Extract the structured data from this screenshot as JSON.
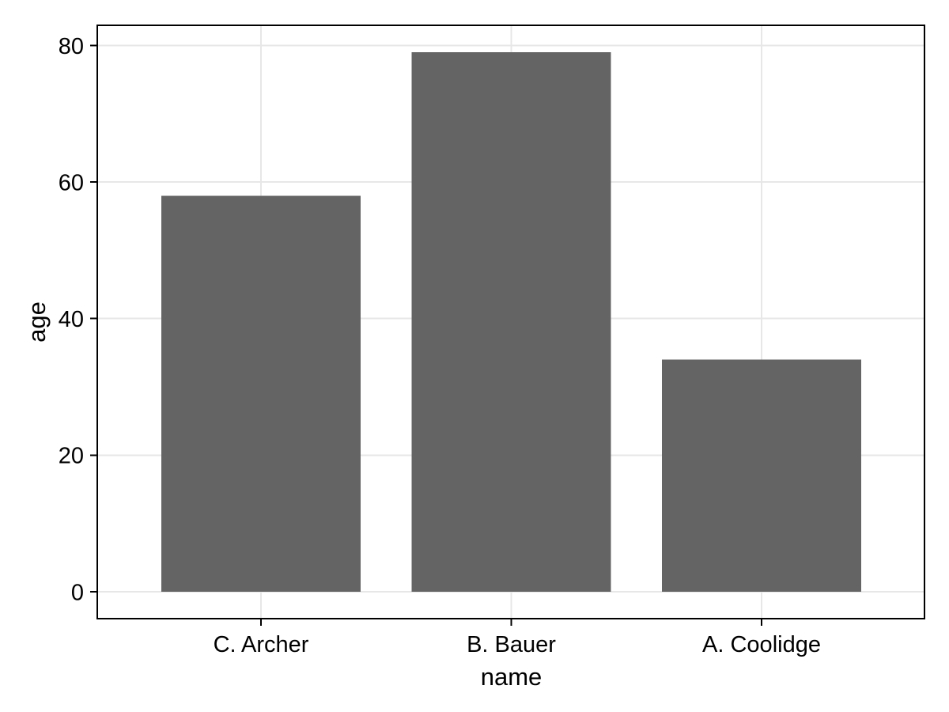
{
  "figure": {
    "background": "#ffffff"
  },
  "chart_data": {
    "type": "bar",
    "title": "",
    "categories": [
      "C. Archer",
      "B. Bauer",
      "A. Coolidge"
    ],
    "values": [
      58,
      79,
      34
    ],
    "xlabel": "name",
    "ylabel": "age",
    "yticks": [
      0,
      20,
      40,
      60,
      80
    ],
    "ylim": [
      -3.95,
      82.95
    ],
    "grid": "major-both",
    "legend": "none",
    "bar_color": "#646464",
    "grid_color": "#e7e7e7",
    "frame_color": "#000000",
    "text_color": "#000000"
  }
}
